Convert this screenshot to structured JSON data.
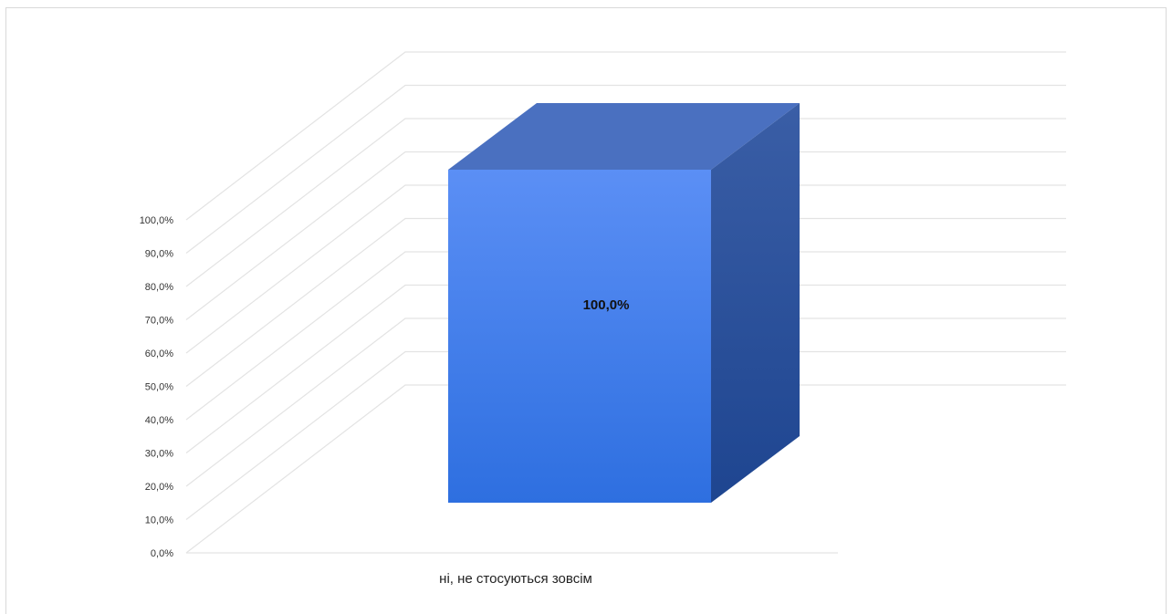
{
  "chart_data": {
    "type": "bar",
    "style": "3d",
    "categories": [
      "ні, не стосуються зовсім"
    ],
    "values": [
      100.0
    ],
    "data_labels": [
      "100,0%"
    ],
    "ylim": [
      0,
      100
    ],
    "y_ticks": [
      "0,0%",
      "10,0%",
      "20,0%",
      "30,0%",
      "40,0%",
      "50,0%",
      "60,0%",
      "70,0%",
      "80,0%",
      "90,0%",
      "100,0%"
    ],
    "grid": true,
    "legend": "none",
    "colors": {
      "bar_front_top": "#5b8ff5",
      "bar_front_bottom": "#2e6fe0",
      "bar_top": "#4a70c0",
      "bar_side_top": "#3a5ea6",
      "bar_side_bottom": "#1e4590",
      "grid": "#e3e3e3"
    }
  }
}
